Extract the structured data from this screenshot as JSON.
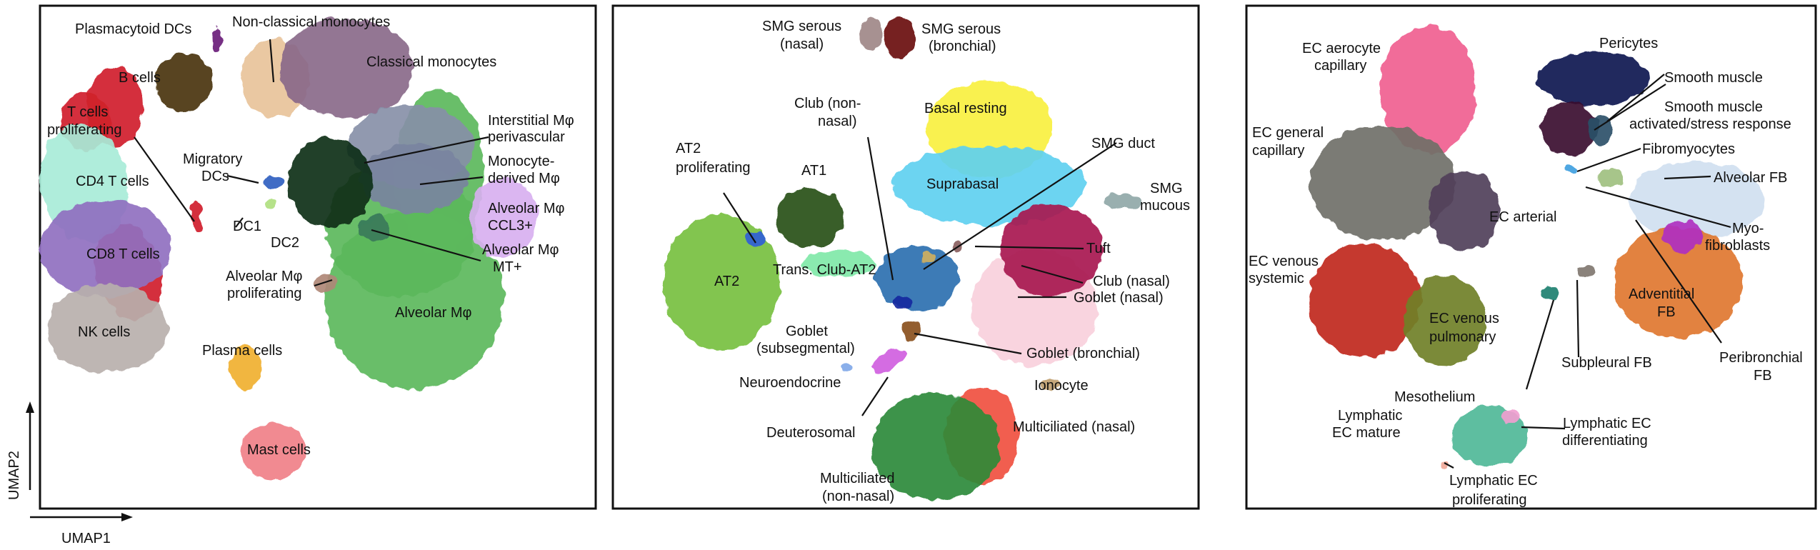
{
  "axes": {
    "x_label": "UMAP1",
    "y_label": "UMAP2"
  },
  "chart_data": [
    {
      "type": "scatter",
      "panel": "immune",
      "clusters": [
        {
          "name": "Plasmacytoid DCs",
          "color": "#6a1f7a"
        },
        {
          "name": "Non-classical monocytes",
          "color": "#e8c39a"
        },
        {
          "name": "Classical monocytes",
          "color": "#8a6a8a"
        },
        {
          "name": "B cells",
          "color": "#4a3410"
        },
        {
          "name": "T cells proliferating",
          "color": "#d0202a"
        },
        {
          "name": "CD4 T cells",
          "color": "#a8ecd8"
        },
        {
          "name": "Migratory DCs",
          "color": "#3060c0"
        },
        {
          "name": "Interstitial Mφ perivascular",
          "color": "#8890a8"
        },
        {
          "name": "Monocyte-derived Mφ",
          "color": "#7a84a0"
        },
        {
          "name": "CD8 T cells",
          "color": "#9070c0"
        },
        {
          "name": "DC1",
          "color": "#b0e080"
        },
        {
          "name": "DC2",
          "color": "#0f3018"
        },
        {
          "name": "Alveolar Mφ CCL3+",
          "color": "#d8b0f0"
        },
        {
          "name": "Alveolar Mφ MT+",
          "color": "#3a7a5a"
        },
        {
          "name": "NK cells",
          "color": "#b8b0ac"
        },
        {
          "name": "Alveolar Mφ proliferating",
          "color": "#b08878"
        },
        {
          "name": "Alveolar Mφ",
          "color": "#5cb85c"
        },
        {
          "name": "Plasma cells",
          "color": "#f0b030"
        },
        {
          "name": "Mast cells",
          "color": "#f08088"
        }
      ]
    },
    {
      "type": "scatter",
      "panel": "epithelial",
      "clusters": [
        {
          "name": "SMG serous (nasal)",
          "color": "#a08888"
        },
        {
          "name": "SMG serous (bronchial)",
          "color": "#6a1010"
        },
        {
          "name": "Club (non-nasal)",
          "color": "#2a70b0"
        },
        {
          "name": "Basal resting",
          "color": "#f8f040"
        },
        {
          "name": "AT2 proliferating",
          "color": "#3060d8"
        },
        {
          "name": "AT1",
          "color": "#285018"
        },
        {
          "name": "SMG duct",
          "color": "#d0b060"
        },
        {
          "name": "Suprabasal",
          "color": "#60d0f0"
        },
        {
          "name": "SMG mucous",
          "color": "#90a8a8"
        },
        {
          "name": "Tuft",
          "color": "#8a6060"
        },
        {
          "name": "AT2",
          "color": "#78c040"
        },
        {
          "name": "Trans. Club-AT2",
          "color": "#80e8a8"
        },
        {
          "name": "Club (nasal)",
          "color": "#a81850"
        },
        {
          "name": "Goblet (nasal)",
          "color": "#f8d0dc"
        },
        {
          "name": "Goblet (subsegmental)",
          "color": "#1828a0"
        },
        {
          "name": "Goblet (bronchial)",
          "color": "#8a5020"
        },
        {
          "name": "Neuroendocrine",
          "color": "#80a8e8"
        },
        {
          "name": "Ionocyte",
          "color": "#c0a070"
        },
        {
          "name": "Deuterosomal",
          "color": "#d060e0"
        },
        {
          "name": "Multiciliated (nasal)",
          "color": "#f05040"
        },
        {
          "name": "Multiciliated (non-nasal)",
          "color": "#2e8a3a"
        }
      ]
    },
    {
      "type": "scatter",
      "panel": "stromal-endothelial",
      "clusters": [
        {
          "name": "EC aerocyte capillary",
          "color": "#f06090"
        },
        {
          "name": "Pericytes",
          "color": "#0a1450"
        },
        {
          "name": "Smooth muscle",
          "color": "#3a0a30"
        },
        {
          "name": "EC general capillary",
          "color": "#707068"
        },
        {
          "name": "Smooth muscle activated/stress response",
          "color": "#2a5068"
        },
        {
          "name": "Fibromyocytes",
          "color": "#40a0e0"
        },
        {
          "name": "Alveolar FB",
          "color": "#d0e0f0"
        },
        {
          "name": "EC arterial",
          "color": "#50405a"
        },
        {
          "name": "Myofibroblasts",
          "color": "#a0c080"
        },
        {
          "name": "EC venous systemic",
          "color": "#c02820"
        },
        {
          "name": "Adventitial FB",
          "color": "#e07830"
        },
        {
          "name": "EC venous pulmonary",
          "color": "#708028"
        },
        {
          "name": "Subpleural FB",
          "color": "#807870"
        },
        {
          "name": "Peribronchial FB",
          "color": "#b030c0"
        },
        {
          "name": "Mesothelium",
          "color": "#208070"
        },
        {
          "name": "Lymphatic EC mature",
          "color": "#50b898"
        },
        {
          "name": "Lymphatic EC differentiating",
          "color": "#f0a0d0"
        },
        {
          "name": "Lymphatic EC proliferating",
          "color": "#f0a898"
        }
      ]
    }
  ]
}
